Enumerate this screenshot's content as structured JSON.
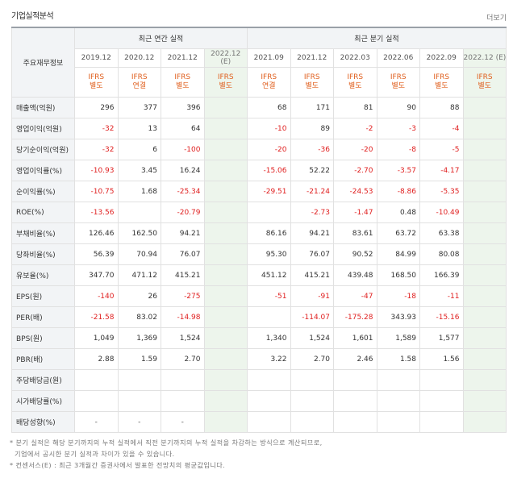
{
  "header": {
    "title": "기업실적분석",
    "more": "더보기"
  },
  "table": {
    "corner": "주요재무정보",
    "groups": {
      "annual": "최근 연간 실적",
      "quarterly": "최근 분기 실적"
    },
    "periods": [
      "2019.12",
      "2020.12",
      "2021.12",
      "2022.12\n(E)",
      "2021.09",
      "2021.12",
      "2022.03",
      "2022.06",
      "2022.09",
      "2022.12 (E)"
    ],
    "basis": [
      "IFRS\n별도",
      "IFRS\n연결",
      "IFRS\n별도",
      "IFRS\n별도",
      "IFRS\n연결",
      "IFRS\n별도",
      "IFRS\n별도",
      "IFRS\n별도",
      "IFRS\n별도",
      "IFRS\n별도"
    ],
    "rows": [
      {
        "label": "매출액(억원)",
        "values": [
          "296",
          "377",
          "396",
          "",
          "68",
          "171",
          "81",
          "90",
          "88",
          ""
        ]
      },
      {
        "label": "영업이익(억원)",
        "values": [
          "-32",
          "13",
          "64",
          "",
          "-10",
          "89",
          "-2",
          "-3",
          "-4",
          ""
        ]
      },
      {
        "label": "당기순이익(억원)",
        "values": [
          "-32",
          "6",
          "-100",
          "",
          "-20",
          "-36",
          "-20",
          "-8",
          "-5",
          ""
        ]
      },
      {
        "label": "영업이익률(%)",
        "values": [
          "-10.93",
          "3.45",
          "16.24",
          "",
          "-15.06",
          "52.22",
          "-2.70",
          "-3.57",
          "-4.17",
          ""
        ]
      },
      {
        "label": "순이익률(%)",
        "values": [
          "-10.75",
          "1.68",
          "-25.34",
          "",
          "-29.51",
          "-21.24",
          "-24.53",
          "-8.86",
          "-5.35",
          ""
        ]
      },
      {
        "label": "ROE(%)",
        "values": [
          "-13.56",
          "",
          "-20.79",
          "",
          "",
          "-2.73",
          "-1.47",
          "0.48",
          "-10.49",
          ""
        ]
      },
      {
        "label": "부채비율(%)",
        "values": [
          "126.46",
          "162.50",
          "94.21",
          "",
          "86.16",
          "94.21",
          "83.61",
          "63.72",
          "63.38",
          ""
        ]
      },
      {
        "label": "당좌비율(%)",
        "values": [
          "56.39",
          "70.94",
          "76.07",
          "",
          "95.30",
          "76.07",
          "90.52",
          "84.99",
          "80.08",
          ""
        ]
      },
      {
        "label": "유보율(%)",
        "values": [
          "347.70",
          "471.12",
          "415.21",
          "",
          "451.12",
          "415.21",
          "439.48",
          "168.50",
          "166.39",
          ""
        ]
      },
      {
        "label": "EPS(원)",
        "values": [
          "-140",
          "26",
          "-275",
          "",
          "-51",
          "-91",
          "-47",
          "-18",
          "-11",
          ""
        ]
      },
      {
        "label": "PER(배)",
        "values": [
          "-21.58",
          "83.02",
          "-14.98",
          "",
          "",
          "-114.07",
          "-175.28",
          "343.93",
          "-15.16",
          ""
        ]
      },
      {
        "label": "BPS(원)",
        "values": [
          "1,049",
          "1,369",
          "1,524",
          "",
          "1,340",
          "1,524",
          "1,601",
          "1,589",
          "1,577",
          ""
        ]
      },
      {
        "label": "PBR(배)",
        "values": [
          "2.88",
          "1.59",
          "2.70",
          "",
          "3.22",
          "2.70",
          "2.46",
          "1.58",
          "1.56",
          ""
        ]
      },
      {
        "label": "주당배당금(원)",
        "values": [
          "",
          "",
          "",
          "",
          "",
          "",
          "",
          "",
          "",
          ""
        ]
      },
      {
        "label": "시가배당률(%)",
        "values": [
          "",
          "",
          "",
          "",
          "",
          "",
          "",
          "",
          "",
          ""
        ]
      },
      {
        "label": "배당성향(%)",
        "values": [
          "-",
          "-",
          "-",
          "",
          "",
          "",
          "",
          "",
          "",
          ""
        ]
      }
    ]
  },
  "notes": [
    "* 분기 실적은 해당 분기까지의 누적 실적에서 직전 분기까지의 누적 실적을 차감하는 방식으로 계산되므로,",
    "  기업에서 공시한 분기 실적과 차이가 있을 수 있습니다.",
    "* 컨센서스(E) : 최근 3개월간 증권사에서 발표한 전망치의 평균값입니다."
  ],
  "colors": {
    "negative": "#e02020",
    "basis": "#e0601f",
    "estimate_bg": "#edf5ec",
    "header_bg": "#f2f4f6"
  }
}
